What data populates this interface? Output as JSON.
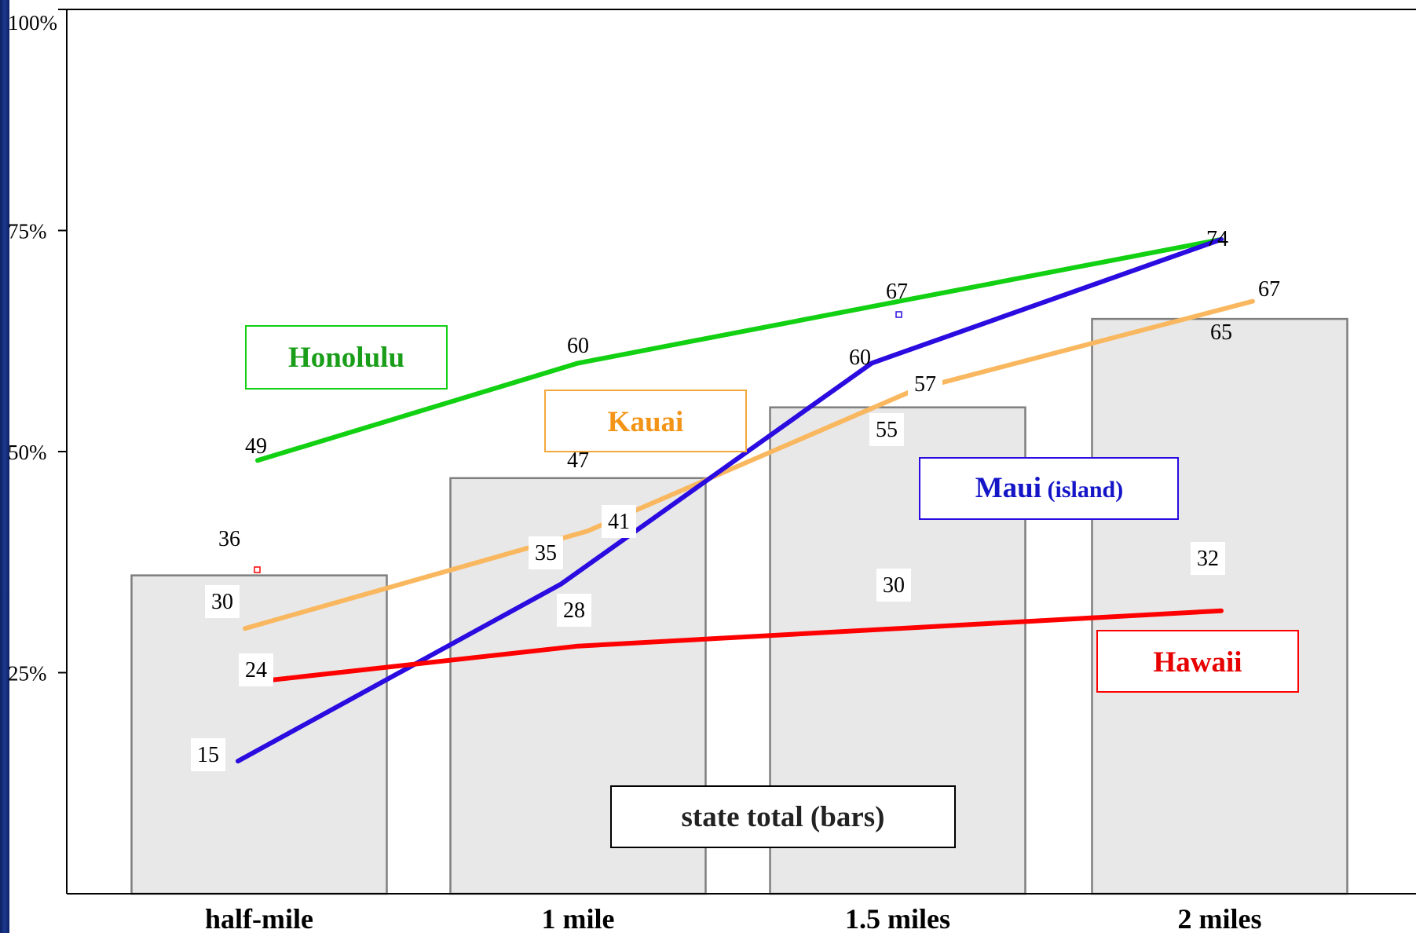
{
  "chart_data": {
    "type": "bar",
    "categories": [
      "half-mile",
      "1 mile",
      "1.5 miles",
      "2 miles"
    ],
    "ylim": [
      0,
      100
    ],
    "y_ticks": [
      "25%",
      "50%",
      "75%",
      "100%"
    ],
    "y_tick_values": [
      25,
      50,
      75,
      100
    ],
    "grid": false,
    "bars": {
      "name": "state total (bars)",
      "values": [
        36,
        47,
        55,
        65
      ],
      "color": "#e8e8e8",
      "edge_color": "#7f7f7f"
    },
    "series": [
      {
        "name": "Honolulu",
        "values": [
          49,
          60,
          67,
          74
        ],
        "color": "#12d012"
      },
      {
        "name": "Kauai",
        "values": [
          30,
          41,
          57,
          67
        ],
        "color": "#f9b860"
      },
      {
        "name": "Maui (island)",
        "values": [
          15,
          35,
          60,
          74
        ],
        "color": "#2a0be0"
      },
      {
        "name": "Hawaii",
        "values": [
          24,
          28,
          30,
          32
        ],
        "color": "#ff0000"
      }
    ],
    "legend": [
      {
        "label": "Honolulu",
        "color": "#12d012",
        "text_color": "#1a9e1a",
        "placement": "upper-left"
      },
      {
        "label": "Kauai",
        "color": "#f3a83c",
        "text_color": "#f39417",
        "placement": "upper-center"
      },
      {
        "label": "Maui",
        "sublabel": "(island)",
        "color": "#2a0be0",
        "text_color": "#1515c8",
        "placement": "center-right"
      },
      {
        "label": "Hawaii",
        "color": "#ff0000",
        "text_color": "#e60000",
        "placement": "lower-right"
      },
      {
        "label": "state total (bars)",
        "color": "#000000",
        "text_color": "#222222",
        "placement": "bottom-center"
      }
    ]
  }
}
